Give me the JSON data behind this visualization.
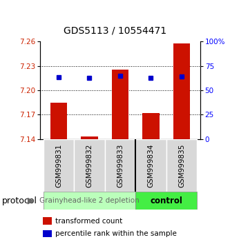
{
  "title": "GDS5113 / 10554471",
  "samples": [
    "GSM999831",
    "GSM999832",
    "GSM999833",
    "GSM999834",
    "GSM999835"
  ],
  "red_bar_tops": [
    7.185,
    7.143,
    7.225,
    7.172,
    7.258
  ],
  "blue_sq_vals": [
    7.216,
    7.215,
    7.218,
    7.215,
    7.217
  ],
  "y_min": 7.14,
  "y_max": 7.26,
  "y_ticks_left": [
    7.14,
    7.17,
    7.2,
    7.23,
    7.26
  ],
  "y_ticks_right": [
    0,
    25,
    50,
    75,
    100
  ],
  "dotted_lines": [
    7.23,
    7.2,
    7.17
  ],
  "group1_label": "Grainyhead-like 2 depletion",
  "group2_label": "control",
  "group1_color": "#bbffbb",
  "group2_color": "#44ee44",
  "bar_color": "#cc1100",
  "sq_color": "#0000cc",
  "legend_red_label": "transformed count",
  "legend_blue_label": "percentile rank within the sample",
  "protocol_label": "protocol",
  "background_color": "#ffffff",
  "bar_width": 0.55,
  "title_fontsize": 10,
  "tick_fontsize": 7.5,
  "sample_fontsize": 7.5,
  "group_label_fontsize": 7.5,
  "legend_fontsize": 7.5,
  "protocol_fontsize": 9
}
